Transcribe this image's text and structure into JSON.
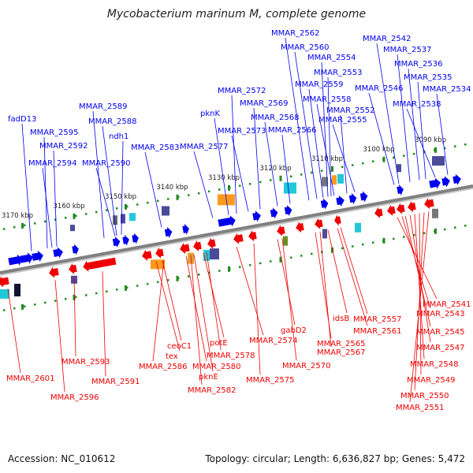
{
  "title": "Mycobacterium marinum M, complete genome",
  "footer": {
    "accession": "Accession: NC_010612",
    "topology": "Topology: circular; Length: 6,636,827 bp; Genes: 5,472"
  },
  "colors": {
    "forward": "#0000ee",
    "reverse": "#ee0000",
    "backbone": "#808080",
    "tick": "#228b22"
  },
  "scale": {
    "ticks": [
      {
        "label": "3170 kbp",
        "kbp": 3170
      },
      {
        "label": "3160 kbp",
        "kbp": 3160
      },
      {
        "label": "3150 kbp",
        "kbp": 3150
      },
      {
        "label": "3140 kbp",
        "kbp": 3140
      },
      {
        "label": "3130 kbp",
        "kbp": 3130
      },
      {
        "label": "3120 kbp",
        "kbp": 3120
      },
      {
        "label": "3110 kbp",
        "kbp": 3110
      },
      {
        "label": "3100 kbp",
        "kbp": 3100
      },
      {
        "label": "3090 kbp",
        "kbp": 3090
      }
    ]
  },
  "forward_genes": [
    "fadD13",
    "MMAR_2595",
    "MMAR_2592",
    "MMAR_2594",
    "MMAR_2589",
    "MMAR_2588",
    "ndh1",
    "MMAR_2590",
    "MMAR_2583",
    "MMAR_2577",
    "pknK",
    "MMAR_2572",
    "MMAR_2569",
    "MMAR_2573",
    "MMAR_2568",
    "MMAR_2566",
    "MMAR_2562",
    "MMAR_2560",
    "MMAR_2554",
    "MMAR_2553",
    "MMAR_2559",
    "MMAR_2558",
    "MMAR_2552",
    "MMAR_2555",
    "MMAR_2542",
    "MMAR_2537",
    "MMAR_2536",
    "MMAR_2535",
    "MMAR_2546",
    "MMAR_2534",
    "MMAR_2538"
  ],
  "reverse_genes": [
    "MMAR_2601",
    "MMAR_2596",
    "MMAR_2593",
    "MMAR_2591",
    "tex",
    "ceoC1",
    "MMAR_2586",
    "MMAR_2580",
    "pknE",
    "MMAR_2582",
    "potE",
    "MMAR_2578",
    "MMAR_2574",
    "MMAR_2575",
    "gabD2",
    "MMAR_2570",
    "MMAR_2565",
    "MMAR_2567",
    "idsB",
    "MMAR_2561",
    "MMAR_2557",
    "MMAR_2541",
    "MMAR_2543",
    "MMAR_2545",
    "MMAR_2547",
    "MMAR_2548",
    "MMAR_2549",
    "MMAR_2550",
    "MMAR_2551"
  ]
}
